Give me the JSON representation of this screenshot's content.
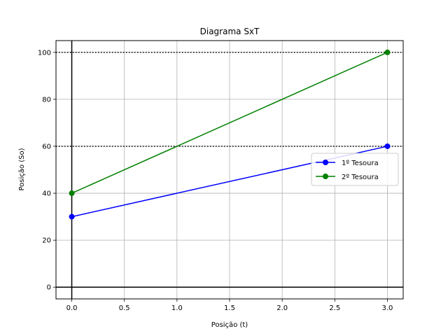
{
  "chart_data": {
    "type": "line",
    "title": "Diagrama SxT",
    "xlabel": "Posição (t)",
    "ylabel": "Posição (So)",
    "xlim": [
      -0.15,
      3.15
    ],
    "ylim": [
      -5,
      105
    ],
    "xticks": [
      0.0,
      0.5,
      1.0,
      1.5,
      2.0,
      2.5,
      3.0
    ],
    "xtick_labels": [
      "0.0",
      "0.5",
      "1.0",
      "1.5",
      "2.0",
      "2.5",
      "3.0"
    ],
    "yticks": [
      0,
      20,
      40,
      60,
      80,
      100
    ],
    "ytick_labels": [
      "0",
      "20",
      "40",
      "60",
      "80",
      "100"
    ],
    "grid": true,
    "legend_position": "center-right",
    "series": [
      {
        "name": "1º Tesoura",
        "color": "#0000ff",
        "x": [
          0,
          3
        ],
        "y": [
          30,
          60
        ]
      },
      {
        "name": "2º Tesoura",
        "color": "#008000",
        "x": [
          0,
          3
        ],
        "y": [
          40,
          100
        ]
      }
    ],
    "reference_lines": {
      "horizontal_dotted": [
        60,
        100
      ],
      "axis_zero_lines": {
        "x": 0,
        "y": 0
      }
    }
  }
}
